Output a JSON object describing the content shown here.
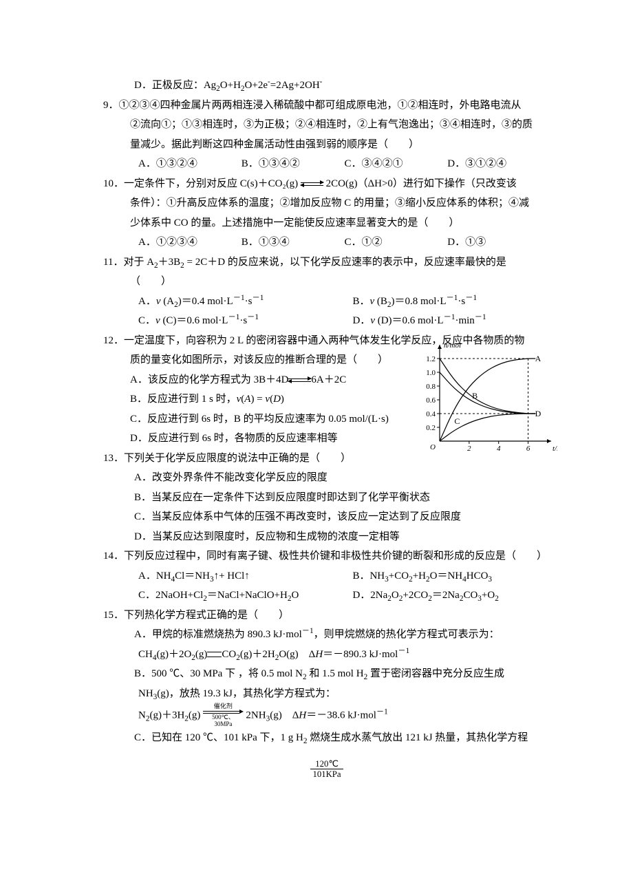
{
  "colors": {
    "text": "#000000",
    "background": "#ffffff",
    "line": "#000000"
  },
  "typography": {
    "body_font_size_pt": 11,
    "line_height": 1.9,
    "font_family": "SimSun"
  },
  "q8_D": "D．正极反应：Ag₂O+H₂O+2e⁻=2Ag+2OH⁻",
  "q9": {
    "stem1": "9．①②③④四种金属片两两相连浸入稀硫酸中都可组成原电池，①②相连时，外电路电流从",
    "stem2": "②流向①；①③相连时，③为正极；②④相连时，②上有气泡逸出；③④相连时，③的质",
    "stem3": "量减少。据此判断这四种金属活动性由强到弱的顺序是（　　）",
    "A": "A．①③②④",
    "B": "B．①③④②",
    "C": "C．③④②①",
    "D": "D．③①②④"
  },
  "q10": {
    "stem1": "10．一定条件下，分别对反应 C(s)＋CO₂(g) ",
    "stem1b": " 2CO(g)（ΔH>0）进行如下操作（只改变该",
    "stem2": "条件）：①升高反应体系的温度；②增加反应物 C 的用量；③缩小反应体系的体积；④减",
    "stem3": "少体系中 CO 的量。上述措施中一定能使反应速率显著变大的是（　　）",
    "A": "A．①②③④",
    "B": "B．①③④",
    "C": "C．①②",
    "D": "D．①③"
  },
  "q11": {
    "stem1": "11．对于 A₂＋3B₂ = 2C＋D 的反应来说，以下化学反应速率的表示中，反应速率最快的是",
    "stem2": "（　　）",
    "A": "A．v (A₂)＝0.4 mol·L⁻¹·s⁻¹",
    "B": "B．v (B₂)＝0.8 mol·L⁻¹·s⁻¹",
    "C": "C．v (C)＝0.6 mol·L⁻¹·s⁻¹",
    "D": "D．v (D)＝0.6 mol·L⁻¹·min⁻¹"
  },
  "q12": {
    "stem1": "12．一定温度下，向容积为 2 L 的密闭容器中通入两种气体发生化学反应，反应中各物质的物",
    "stem2": "质的量变化如图所示，对该反应的推断合理的是（　　）",
    "A_pre": "A．该反应的化学方程式为 3B＋4D",
    "A_post": "6A＋2C",
    "B": "B．反应进行到 1 s 时，v(A) = v(D)",
    "C": "C．反应进行到 6s 时，B 的平均反应速率为 0.05 mol/(L·s)",
    "D": "D．反应进行到 6s 时，各物质的反应速率相等",
    "chart": {
      "type": "line",
      "xlabel": "t/s",
      "ylabel": "n/mol",
      "xlim": [
        0,
        7
      ],
      "ylim": [
        0,
        1.3
      ],
      "xticks": [
        2,
        4,
        6
      ],
      "yticks": [
        0.2,
        0.4,
        0.6,
        0.8,
        1.0,
        1.2
      ],
      "line_color": "#000000",
      "line_width": 1.2,
      "background_color": "#ffffff",
      "series": {
        "A": {
          "label": "A",
          "label_at_end": true,
          "points": [
            [
              0,
              0
            ],
            [
              1,
              0.48
            ],
            [
              2,
              0.8
            ],
            [
              3,
              1.0
            ],
            [
              4,
              1.12
            ],
            [
              5,
              1.18
            ],
            [
              6,
              1.2
            ],
            [
              6.5,
              1.2
            ]
          ]
        },
        "B": {
          "label": "B",
          "points": [
            [
              0,
              1.0
            ],
            [
              1,
              0.76
            ],
            [
              2,
              0.6
            ],
            [
              3,
              0.5
            ],
            [
              4,
              0.44
            ],
            [
              5,
              0.41
            ],
            [
              6,
              0.4
            ],
            [
              6.5,
              0.4
            ]
          ]
        },
        "C": {
          "label": "C",
          "points": [
            [
              0,
              0
            ],
            [
              1,
              0.16
            ],
            [
              2,
              0.27
            ],
            [
              3,
              0.34
            ],
            [
              4,
              0.38
            ],
            [
              5,
              0.395
            ],
            [
              6,
              0.4
            ],
            [
              6.5,
              0.4
            ]
          ]
        },
        "D": {
          "label": "D",
          "label_at_end": true,
          "points": [
            [
              0,
              1.2
            ],
            [
              1,
              0.88
            ],
            [
              2,
              0.67
            ],
            [
              3,
              0.54
            ],
            [
              4,
              0.46
            ],
            [
              5,
              0.42
            ],
            [
              6,
              0.4
            ],
            [
              6.5,
              0.4
            ]
          ]
        }
      },
      "dash_guides": [
        {
          "from": [
            0,
            1.2
          ],
          "to": [
            6,
            1.2
          ]
        },
        {
          "from": [
            6,
            1.2
          ],
          "to": [
            6,
            0
          ]
        },
        {
          "from": [
            0,
            0.4
          ],
          "to": [
            6,
            0.4
          ]
        }
      ]
    }
  },
  "q13": {
    "stem": "13．下列关于化学反应限度的说法中正确的是（　　）",
    "A": "A．改变外界条件不能改变化学反应的限度",
    "B": "B．当某反应在一定条件下达到反应限度时即达到了化学平衡状态",
    "C": "C．当某反应体系中气体的压强不再改变时，该反应一定达到了反应限度",
    "D": "D．当某反应达到限度时，反应物和生成物的浓度一定相等"
  },
  "q14": {
    "stem": "14．下列反应过程中，同时有离子键、极性共价键和非极性共价键的断裂和形成的反应是（　　）",
    "A": "A．NH₄Cl＝NH₃↑+ HCl↑",
    "B": "B．NH₃+CO₂+H₂O＝NH₄HCO₃",
    "C": "C．2NaOH+Cl₂＝NaCl+NaClO+H₂O",
    "D": "D．2Na₂O₂+2CO₂＝2Na₂CO₃+O₂"
  },
  "q15": {
    "stem": "15．下列热化学方程式正确的是（　　）",
    "A1": "A．甲烷的标准燃烧热为 890.3 kJ·mol⁻¹，则甲烷燃烧的热化学方程式可表示为：",
    "A2_pre": "CH₄(g)＋2O₂(g)",
    "A2_post": "CO₂(g)＋2H₂O(g)　ΔH＝－890.3 kJ·mol⁻¹",
    "B1": "B．500 ℃、30 MPa 下 ，将 0.5 mol N₂ 和 1.5 mol H₂ 置于密闭容器中充分反应生成",
    "B2": "NH₃(g)，放热 19.3 kJ，其热化学方程式为：",
    "B3_pre": "N₂(g)＋3H₂(g) ",
    "B3_post": " 2NH₃(g)　ΔH＝－38.6 kJ·mol⁻¹",
    "B3_cond_top": "催化剂",
    "B3_cond_bot": "500℃、30MPa",
    "C1": "C．已知在 120 ℃、101 kPa 下，1 g H₂ 燃烧生成水蒸气放出 121 kJ 热量，其热化学方程",
    "bottom_frac_num": "120℃",
    "bottom_frac_den": "101KPa"
  }
}
